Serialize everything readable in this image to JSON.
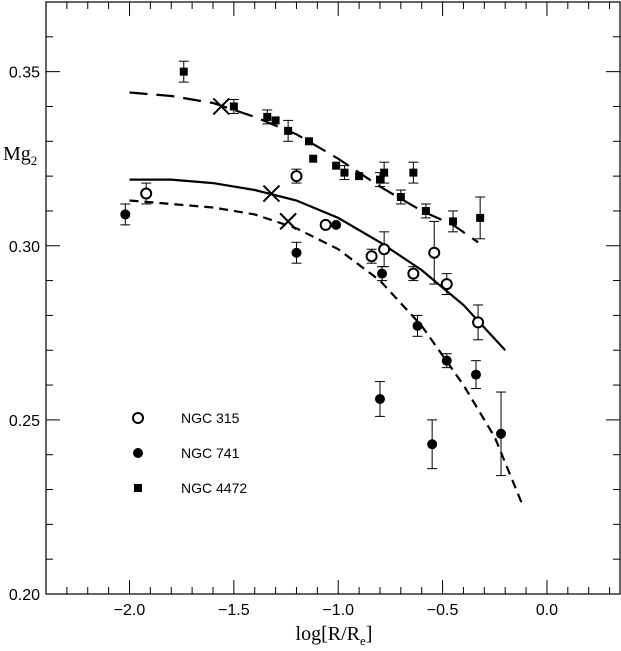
{
  "chart_data": {
    "type": "scatter",
    "xlabel": "log[R/R",
    "xlabel_sub": "e",
    "xlabel_close": "]",
    "ylabel": "Mg",
    "ylabel_sub": "2",
    "xlim": [
      -2.4,
      0.35
    ],
    "ylim": [
      0.2,
      0.37
    ],
    "x_ticks": [
      -2.0,
      -1.5,
      -1.0,
      -0.5,
      0.0
    ],
    "x_tick_labels": [
      "−2.0",
      "−1.5",
      "−1.0",
      "−0.5",
      "0.0"
    ],
    "y_ticks": [
      0.2,
      0.25,
      0.3,
      0.35
    ],
    "y_tick_labels": [
      "0.20",
      "0.25",
      "0.30",
      "0.35"
    ],
    "grid": false,
    "legend_position": "bottom-left",
    "series": [
      {
        "name": "NGC 315",
        "marker": "open-circle",
        "points": [
          {
            "x": -1.92,
            "y": 0.315,
            "err": 0.003
          },
          {
            "x": -1.2,
            "y": 0.32,
            "err": 0.002
          },
          {
            "x": -1.06,
            "y": 0.306,
            "err": 0.0
          },
          {
            "x": -0.84,
            "y": 0.297,
            "err": 0.002
          },
          {
            "x": -0.78,
            "y": 0.299,
            "err": 0.005
          },
          {
            "x": -0.64,
            "y": 0.292,
            "err": 0.002
          },
          {
            "x": -0.54,
            "y": 0.298,
            "err": 0.009
          },
          {
            "x": -0.48,
            "y": 0.289,
            "err": 0.003
          },
          {
            "x": -0.33,
            "y": 0.278,
            "err": 0.005
          }
        ]
      },
      {
        "name": "NGC 741",
        "marker": "filled-circle",
        "points": [
          {
            "x": -2.02,
            "y": 0.309,
            "err": 0.003
          },
          {
            "x": -1.2,
            "y": 0.298,
            "err": 0.003
          },
          {
            "x": -1.01,
            "y": 0.306,
            "err": 0.0
          },
          {
            "x": -0.8,
            "y": 0.256,
            "err": 0.005
          },
          {
            "x": -0.79,
            "y": 0.292,
            "err": 0.002
          },
          {
            "x": -0.62,
            "y": 0.277,
            "err": 0.003
          },
          {
            "x": -0.55,
            "y": 0.243,
            "err": 0.007
          },
          {
            "x": -0.48,
            "y": 0.267,
            "err": 0.002
          },
          {
            "x": -0.34,
            "y": 0.263,
            "err": 0.004
          },
          {
            "x": -0.22,
            "y": 0.246,
            "err": 0.012
          }
        ]
      },
      {
        "name": "NGC 4472",
        "marker": "filled-square",
        "points": [
          {
            "x": -1.74,
            "y": 0.35,
            "err": 0.003
          },
          {
            "x": -1.5,
            "y": 0.34,
            "err": 0.002
          },
          {
            "x": -1.34,
            "y": 0.337,
            "err": 0.002
          },
          {
            "x": -1.3,
            "y": 0.336,
            "err": 0.0
          },
          {
            "x": -1.24,
            "y": 0.333,
            "err": 0.003
          },
          {
            "x": -1.14,
            "y": 0.33,
            "err": 0.0
          },
          {
            "x": -1.12,
            "y": 0.325,
            "err": 0.0
          },
          {
            "x": -1.01,
            "y": 0.323,
            "err": 0.0
          },
          {
            "x": -0.97,
            "y": 0.321,
            "err": 0.002
          },
          {
            "x": -0.9,
            "y": 0.32,
            "err": 0.0
          },
          {
            "x": -0.8,
            "y": 0.319,
            "err": 0.002
          },
          {
            "x": -0.78,
            "y": 0.321,
            "err": 0.003
          },
          {
            "x": -0.64,
            "y": 0.321,
            "err": 0.003
          },
          {
            "x": -0.7,
            "y": 0.314,
            "err": 0.002
          },
          {
            "x": -0.58,
            "y": 0.31,
            "err": 0.002
          },
          {
            "x": -0.45,
            "y": 0.307,
            "err": 0.003
          },
          {
            "x": -0.32,
            "y": 0.308,
            "err": 0.006
          }
        ]
      }
    ],
    "curves": [
      {
        "style": "long-dash",
        "points": [
          [
            -2.0,
            0.344
          ],
          [
            -1.8,
            0.343
          ],
          [
            -1.6,
            0.341
          ],
          [
            -1.4,
            0.337
          ],
          [
            -1.2,
            0.332
          ],
          [
            -1.0,
            0.325
          ],
          [
            -0.8,
            0.317
          ],
          [
            -0.6,
            0.31
          ],
          [
            -0.45,
            0.306
          ],
          [
            -0.33,
            0.301
          ]
        ]
      },
      {
        "style": "solid",
        "points": [
          [
            -2.0,
            0.319
          ],
          [
            -1.8,
            0.319
          ],
          [
            -1.6,
            0.318
          ],
          [
            -1.4,
            0.316
          ],
          [
            -1.2,
            0.313
          ],
          [
            -1.0,
            0.308
          ],
          [
            -0.8,
            0.301
          ],
          [
            -0.6,
            0.293
          ],
          [
            -0.4,
            0.283
          ],
          [
            -0.2,
            0.27
          ]
        ]
      },
      {
        "style": "short-dash",
        "points": [
          [
            -2.0,
            0.313
          ],
          [
            -1.8,
            0.312
          ],
          [
            -1.6,
            0.311
          ],
          [
            -1.4,
            0.309
          ],
          [
            -1.2,
            0.305
          ],
          [
            -1.0,
            0.299
          ],
          [
            -0.8,
            0.29
          ],
          [
            -0.6,
            0.277
          ],
          [
            -0.4,
            0.26
          ],
          [
            -0.25,
            0.245
          ],
          [
            -0.12,
            0.226
          ]
        ]
      }
    ],
    "cross_markers": [
      {
        "x": -1.56,
        "y": 0.34
      },
      {
        "x": -1.32,
        "y": 0.315
      },
      {
        "x": -1.24,
        "y": 0.307
      }
    ]
  }
}
